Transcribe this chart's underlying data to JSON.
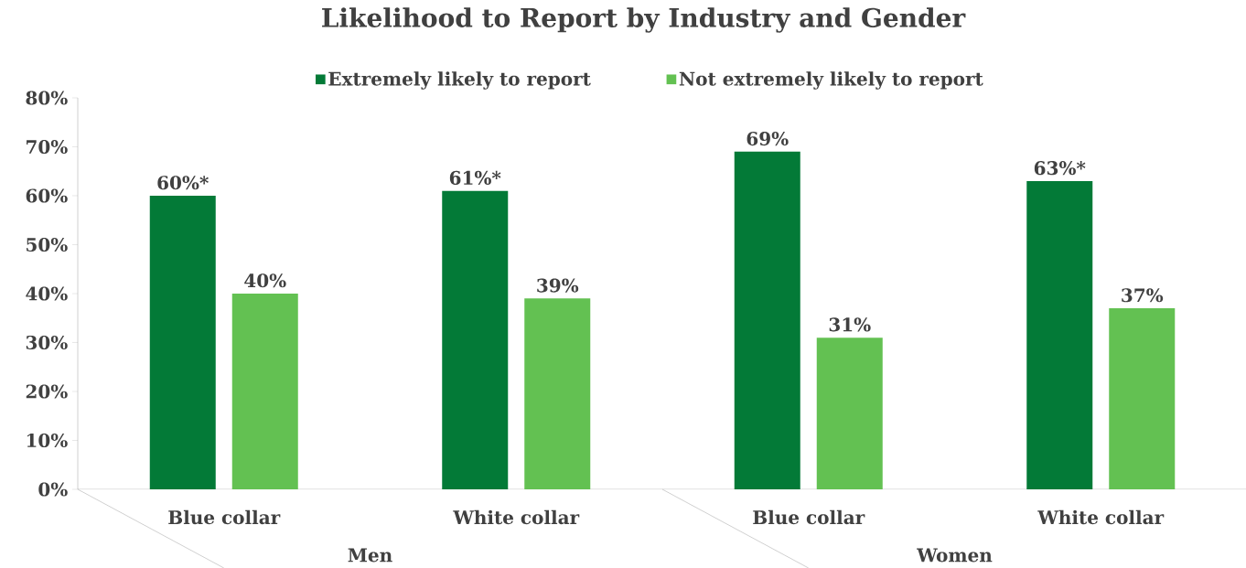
{
  "chart_data": {
    "type": "bar",
    "title": "Likelihood to Report by Industry and Gender",
    "categories": [
      "Blue collar",
      "White collar",
      "Blue collar",
      "White collar"
    ],
    "annotations": [
      "Men",
      "Women"
    ],
    "series": [
      {
        "name": "Extremely likely to report",
        "color": "#037a37",
        "values": [
          60,
          61,
          69,
          63
        ],
        "value_labels": [
          "60%*",
          "61%*",
          "69%",
          "63%*"
        ]
      },
      {
        "name": "Not extremely likely to report",
        "color": "#63c152",
        "values": [
          40,
          39,
          31,
          37
        ],
        "value_labels": [
          "40%",
          "39%",
          "31%",
          "37%"
        ]
      }
    ],
    "ylim": [
      0,
      80
    ],
    "yticks": [
      {
        "value": 0,
        "label": "0%"
      },
      {
        "value": 10,
        "label": "10%"
      },
      {
        "value": 20,
        "label": "20%"
      },
      {
        "value": 30,
        "label": "30%"
      },
      {
        "value": 40,
        "label": "40%"
      },
      {
        "value": 50,
        "label": "50%"
      },
      {
        "value": 60,
        "label": "60%"
      },
      {
        "value": 70,
        "label": "70%"
      },
      {
        "value": 80,
        "label": "80%"
      }
    ],
    "legend": "top",
    "grid": false
  }
}
